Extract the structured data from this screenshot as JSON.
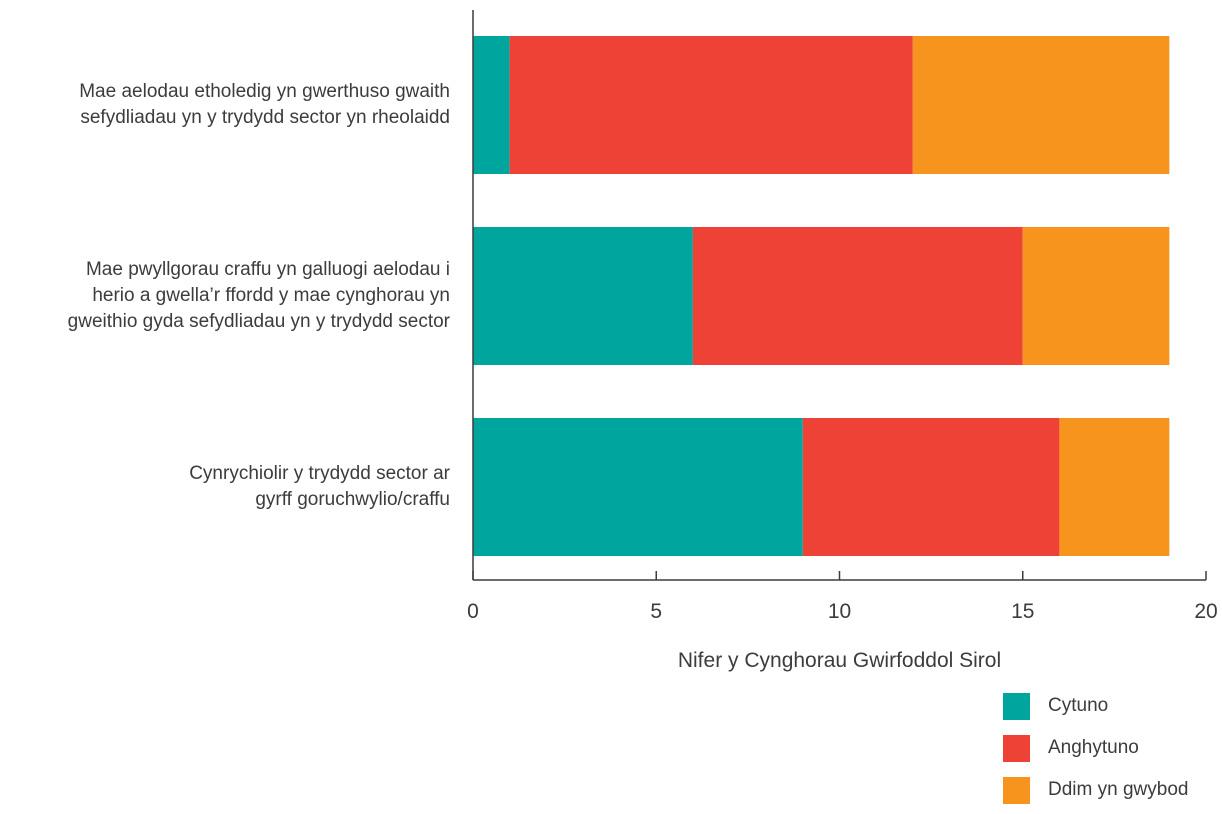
{
  "chart_data": {
    "type": "bar",
    "orientation": "horizontal",
    "stacked": true,
    "categories": [
      [
        "Mae aelodau etholedig yn gwerthuso gwaith",
        "sefydliadau yn y trydydd sector yn rheolaidd"
      ],
      [
        "Mae pwyllgorau craffu yn galluogi aelodau i",
        "herio a gwella’r ffordd y mae cynghorau yn",
        "gweithio gyda sefydliadau yn y trydydd sector"
      ],
      [
        "Cynrychiolir y trydydd sector ar",
        "gyrff goruchwylio/craffu"
      ]
    ],
    "series": [
      {
        "name": "Cytuno",
        "color": "#00a59d",
        "values": [
          1,
          6,
          9
        ]
      },
      {
        "name": "Anghytuno",
        "color": "#ef4237",
        "values": [
          11,
          9,
          7
        ]
      },
      {
        "name": "Ddim yn gwybod",
        "color": "#f7941e",
        "values": [
          7,
          4,
          3
        ]
      }
    ],
    "xlabel": "Nifer y Cynghorau Gwirfoddol Sirol",
    "ylabel": "",
    "xlim": [
      0,
      20
    ],
    "xticks": [
      "0",
      "5",
      "10",
      "15",
      "20"
    ],
    "grid": false,
    "legend_position": "bottom-right"
  }
}
